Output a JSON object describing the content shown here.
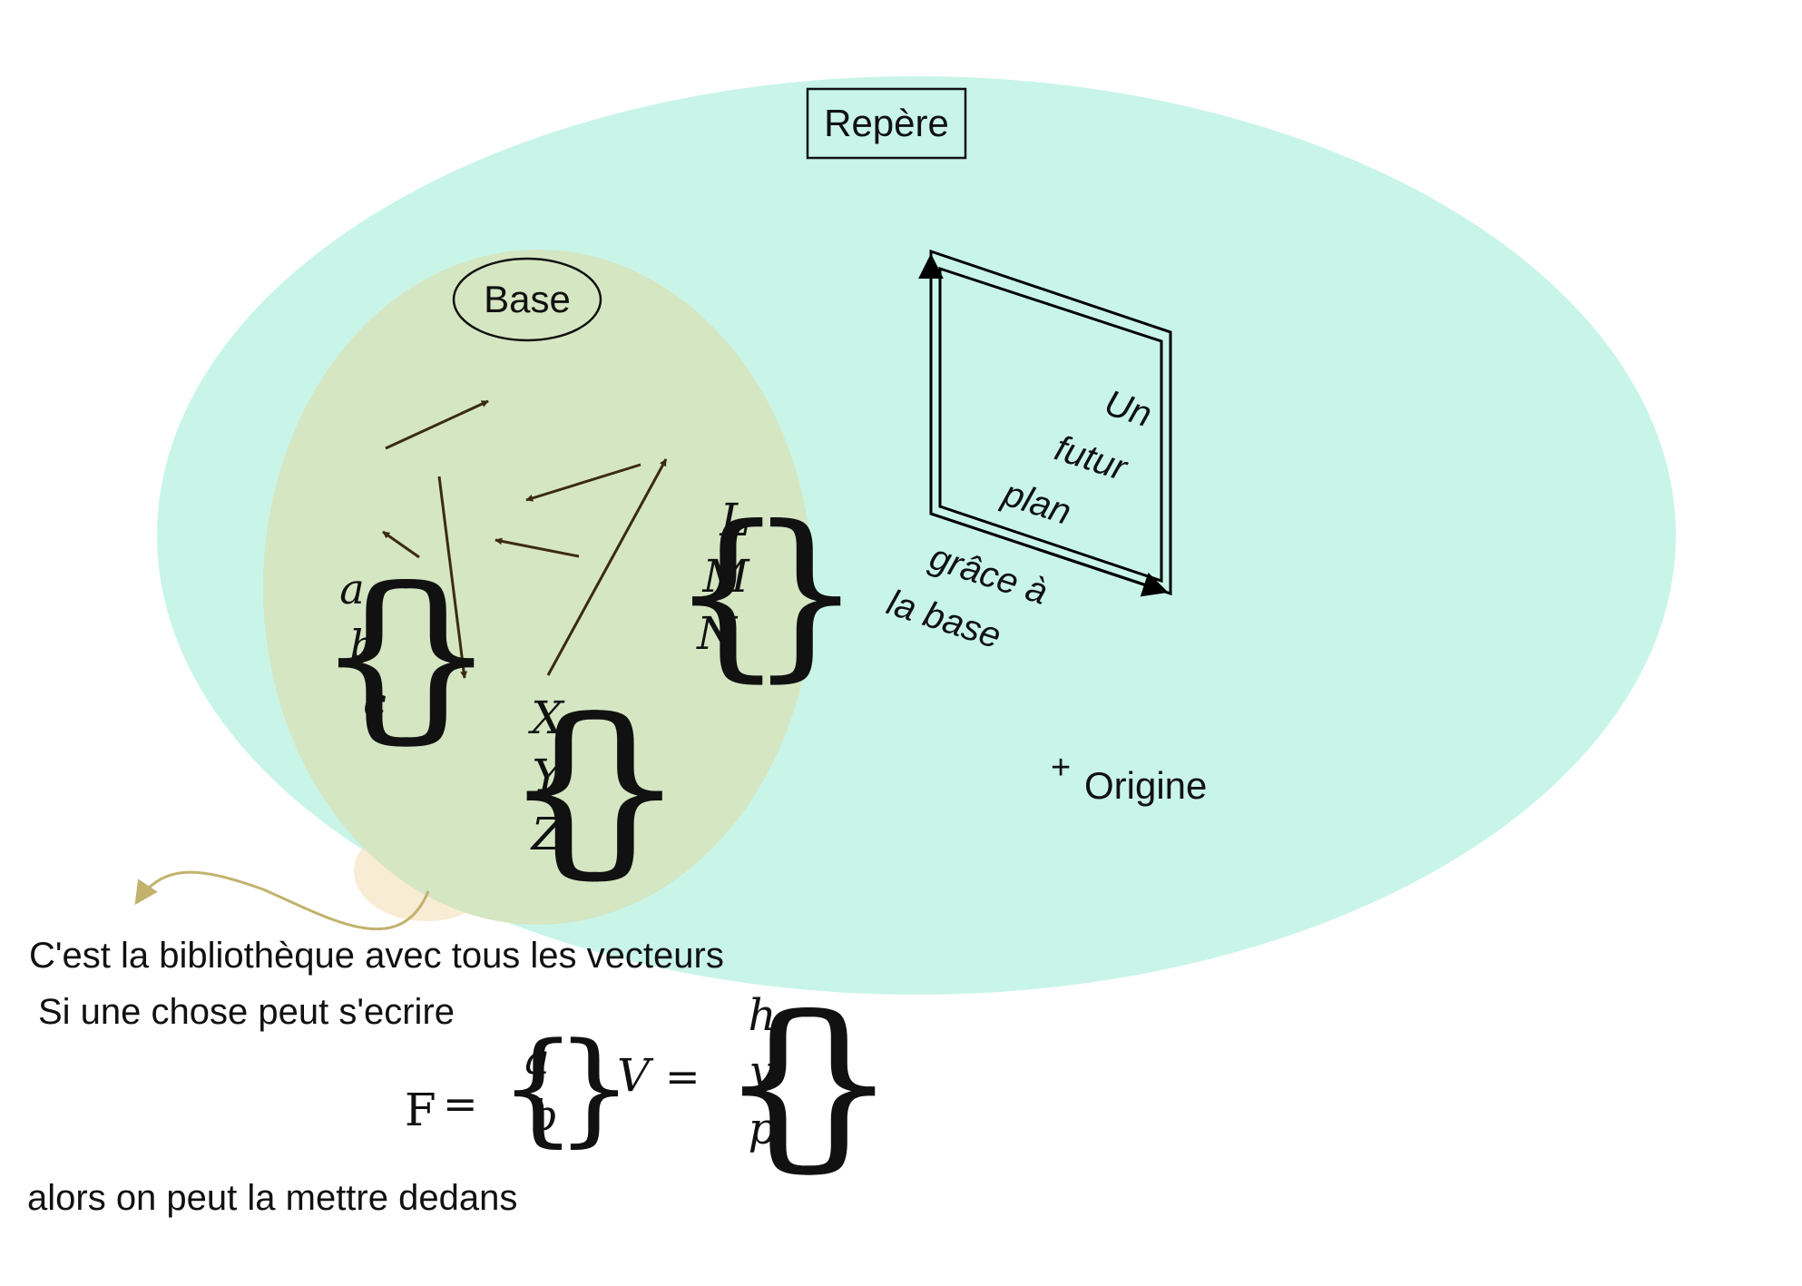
{
  "colors": {
    "repere_fill": "#c9f5e9",
    "base_fill": "#d5e6c3",
    "arrow": "#3b2a12",
    "note_arrow": "#c2b26e",
    "ink": "#111111"
  },
  "repere": {
    "label": "Repère"
  },
  "base": {
    "label": "Base"
  },
  "vector_sets": {
    "abc": [
      "a",
      "b",
      "c"
    ],
    "lmn": [
      "L",
      "M",
      "N"
    ],
    "xyz": [
      "X",
      "Y",
      "Z"
    ]
  },
  "plane": {
    "text_lines": [
      "Un",
      "futur",
      "plan"
    ],
    "caption_lines": [
      "grâce à",
      "la base"
    ]
  },
  "origin": {
    "marker": "+",
    "label": "Origine"
  },
  "notes": {
    "line1": "C'est la bibliothèque avec tous les vecteurs",
    "line2": "Si une chose peut s'ecrire",
    "line3": "alors on peut la mettre dedans"
  },
  "examples": {
    "f_name": "F",
    "f_items": [
      "a",
      "b"
    ],
    "v_name": "V",
    "v_items": [
      "h",
      "v",
      "p"
    ],
    "equals": "="
  }
}
